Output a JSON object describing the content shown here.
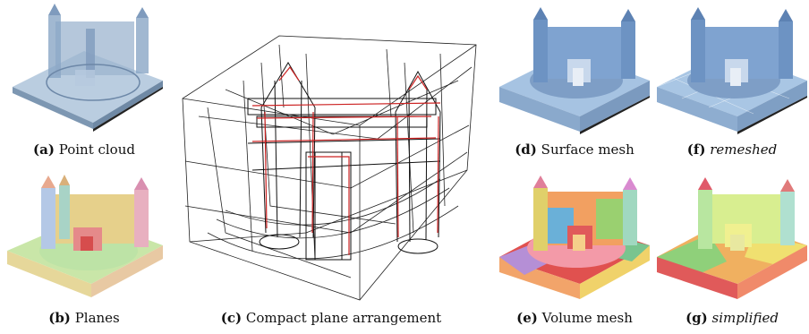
{
  "figure": {
    "panels": [
      {
        "id": "a",
        "label": "(a)",
        "text": "Point cloud",
        "italic": false
      },
      {
        "id": "b",
        "label": "(b)",
        "text": "Planes",
        "italic": false
      },
      {
        "id": "c",
        "label": "(c)",
        "text": "Compact plane arrangement",
        "italic": false
      },
      {
        "id": "d",
        "label": "(d)",
        "text": "Surface mesh",
        "italic": false
      },
      {
        "id": "e",
        "label": "(e)",
        "text": "Volume mesh",
        "italic": false
      },
      {
        "id": "f",
        "label": "(f)",
        "text": "remeshed",
        "italic": true
      },
      {
        "id": "g",
        "label": "(g)",
        "text": "simplified",
        "italic": true
      }
    ]
  },
  "colors": {
    "point_cloud": "#9fb8d0",
    "surface_mesh": "#8fb0d6",
    "wireframe": "#222222",
    "intersection": "#cc2222",
    "planes_ground": "#c9e6a8",
    "volume_red": "#e0514f",
    "simplified_yellow": "#f0e070"
  }
}
